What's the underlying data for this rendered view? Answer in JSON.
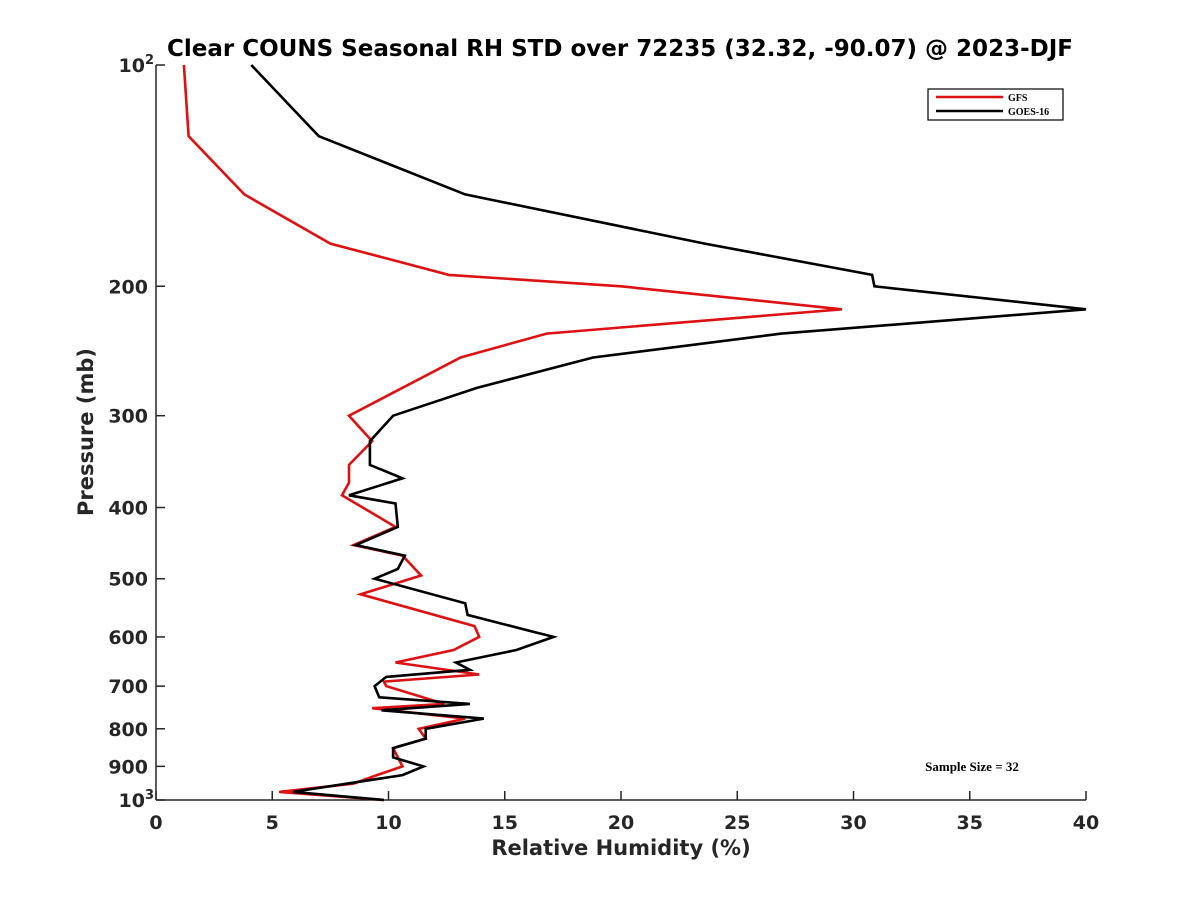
{
  "chart_data": {
    "type": "line",
    "title": "Clear COUNS Seasonal RH STD over 72235 (32.32, -90.07) @ 2023-DJF",
    "xlabel": "Relative Humidity (%)",
    "ylabel": "Pressure (mb)",
    "xlim": [
      0,
      40
    ],
    "ylim": [
      100,
      1000
    ],
    "yscale": "log",
    "yreverse": true,
    "xticks": [
      0,
      5,
      10,
      15,
      20,
      25,
      30,
      35,
      40
    ],
    "xtick_labels": [
      "0",
      "5",
      "10",
      "15",
      "20",
      "25",
      "30",
      "35",
      "40"
    ],
    "yticks": [
      {
        "value": 100,
        "base": "10",
        "exp": "2"
      },
      {
        "value": 200,
        "label": "200"
      },
      {
        "value": 300,
        "label": "300"
      },
      {
        "value": 400,
        "label": "400"
      },
      {
        "value": 500,
        "label": "500"
      },
      {
        "value": 600,
        "label": "600"
      },
      {
        "value": 700,
        "label": "700"
      },
      {
        "value": 800,
        "label": "800"
      },
      {
        "value": 900,
        "label": "900"
      },
      {
        "value": 1000,
        "base": "10",
        "exp": "3"
      }
    ],
    "series": [
      {
        "name": "GFS",
        "color": "#dd1111",
        "points": [
          [
            1.2,
            100
          ],
          [
            1.4,
            125
          ],
          [
            3.8,
            150
          ],
          [
            7.5,
            175
          ],
          [
            12.6,
            193
          ],
          [
            20.0,
            200
          ],
          [
            29.5,
            215
          ],
          [
            16.8,
            232
          ],
          [
            13.1,
            250
          ],
          [
            8.3,
            300
          ],
          [
            9.3,
            325
          ],
          [
            8.3,
            350
          ],
          [
            8.3,
            370
          ],
          [
            8.0,
            385
          ],
          [
            10.3,
            425
          ],
          [
            8.5,
            450
          ],
          [
            10.6,
            465
          ],
          [
            11.4,
            495
          ],
          [
            8.8,
            525
          ],
          [
            13.7,
            580
          ],
          [
            13.9,
            600
          ],
          [
            12.8,
            625
          ],
          [
            10.3,
            650
          ],
          [
            13.9,
            675
          ],
          [
            9.8,
            690
          ],
          [
            9.9,
            700
          ],
          [
            12.4,
            740
          ],
          [
            9.3,
            750
          ],
          [
            13.3,
            775
          ],
          [
            11.3,
            800
          ],
          [
            11.6,
            825
          ],
          [
            10.2,
            850
          ],
          [
            10.6,
            900
          ],
          [
            9.5,
            925
          ],
          [
            8.5,
            950
          ],
          [
            5.3,
            975
          ],
          [
            9.8,
            1000
          ]
        ]
      },
      {
        "name": "GOES-16",
        "color": "#000000",
        "points": [
          [
            4.1,
            100
          ],
          [
            7.0,
            125
          ],
          [
            13.3,
            150
          ],
          [
            23.6,
            175
          ],
          [
            30.8,
            193
          ],
          [
            30.9,
            200
          ],
          [
            40.0,
            215
          ],
          [
            26.9,
            232
          ],
          [
            18.8,
            250
          ],
          [
            13.8,
            275
          ],
          [
            10.2,
            300
          ],
          [
            9.2,
            325
          ],
          [
            9.2,
            350
          ],
          [
            10.6,
            365
          ],
          [
            8.3,
            385
          ],
          [
            10.3,
            395
          ],
          [
            10.4,
            425
          ],
          [
            8.6,
            450
          ],
          [
            10.7,
            465
          ],
          [
            10.4,
            485
          ],
          [
            9.4,
            500
          ],
          [
            13.3,
            540
          ],
          [
            13.4,
            560
          ],
          [
            16.2,
            590
          ],
          [
            17.1,
            600
          ],
          [
            15.5,
            625
          ],
          [
            12.9,
            650
          ],
          [
            13.5,
            665
          ],
          [
            9.9,
            680
          ],
          [
            9.4,
            700
          ],
          [
            9.6,
            725
          ],
          [
            13.5,
            740
          ],
          [
            9.7,
            755
          ],
          [
            14.1,
            775
          ],
          [
            11.6,
            800
          ],
          [
            11.6,
            825
          ],
          [
            10.2,
            850
          ],
          [
            10.2,
            875
          ],
          [
            11.5,
            900
          ],
          [
            10.6,
            925
          ],
          [
            5.9,
            975
          ],
          [
            9.8,
            1000
          ]
        ]
      }
    ],
    "legend": {
      "position": "top-right",
      "entries": [
        "GFS",
        "GOES-16"
      ]
    },
    "annotation": "Sample Size = 32"
  }
}
